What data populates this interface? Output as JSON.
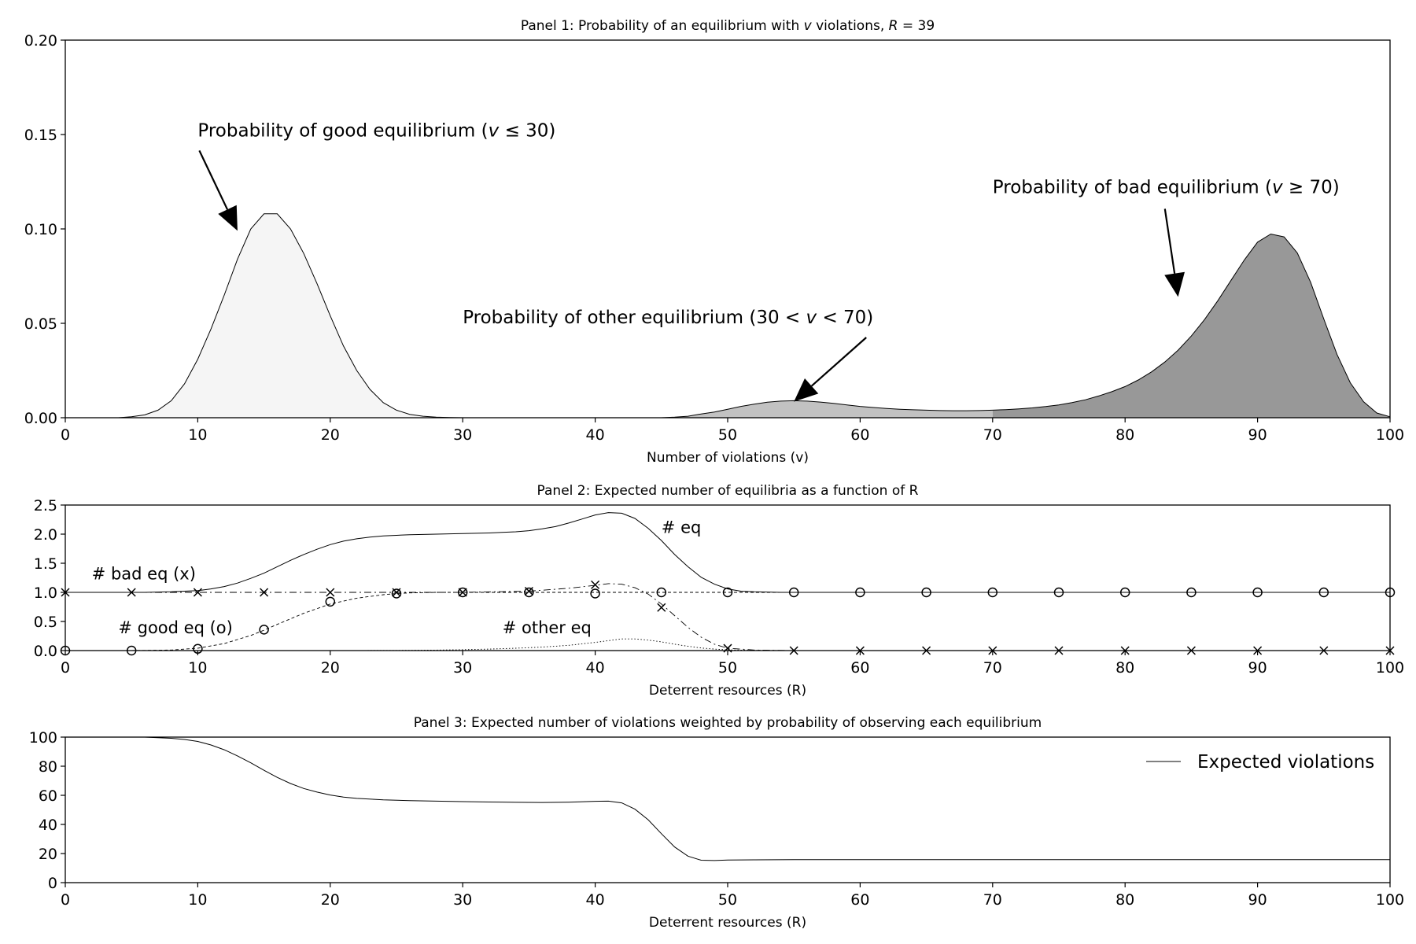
{
  "chart_data": [
    {
      "type": "area",
      "title": "Panel 1: Probability of an equilibrium with v violations, R = 39",
      "title_parts": {
        "prefix": "Panel 1: Probability of an equilibrium with ",
        "var": "v",
        "mid": " violations, ",
        "rvar": "R",
        "suffix": " = 39"
      },
      "xlabel": "Number of violations (v)",
      "ylabel": "",
      "xlim": [
        0,
        100
      ],
      "ylim": [
        0,
        0.2
      ],
      "xticks": [
        "0",
        "10",
        "20",
        "30",
        "40",
        "50",
        "60",
        "70",
        "80",
        "90",
        "100"
      ],
      "yticks": [
        "0.00",
        "0.05",
        "0.10",
        "0.15",
        "0.20"
      ],
      "grid": false,
      "fill_regions": [
        {
          "from": 0,
          "to": 30,
          "color": "#f5f5f5"
        },
        {
          "from": 30,
          "to": 70,
          "color": "#c2c2c2"
        },
        {
          "from": 70,
          "to": 100,
          "color": "#989898"
        }
      ],
      "series": [
        {
          "x": [
            0,
            1,
            2,
            3,
            4,
            5,
            6,
            7,
            8,
            9,
            10,
            11,
            12,
            13,
            14,
            15,
            16,
            17,
            18,
            19,
            20,
            21,
            22,
            23,
            24,
            25,
            26,
            27,
            28,
            29,
            30,
            31,
            32,
            33,
            34,
            35,
            36,
            37,
            38,
            39,
            40,
            41,
            42,
            43,
            44,
            45,
            46,
            47,
            48,
            49,
            50,
            51,
            52,
            53,
            54,
            55,
            56,
            57,
            58,
            59,
            60,
            61,
            62,
            63,
            64,
            65,
            66,
            67,
            68,
            69,
            70,
            71,
            72,
            73,
            74,
            75,
            76,
            77,
            78,
            79,
            80,
            81,
            82,
            83,
            84,
            85,
            86,
            87,
            88,
            89,
            90,
            91,
            92,
            93,
            94,
            95,
            96,
            97,
            98,
            99,
            100
          ],
          "y": [
            0,
            0,
            0,
            0,
            0,
            0.0005,
            0.0015,
            0.004,
            0.009,
            0.018,
            0.031,
            0.047,
            0.065,
            0.084,
            0.1,
            0.108,
            0.108,
            0.1,
            0.087,
            0.071,
            0.054,
            0.038,
            0.025,
            0.015,
            0.008,
            0.004,
            0.0018,
            0.0008,
            0.0003,
            0.0001,
            0,
            0,
            0,
            0,
            0,
            0,
            0,
            0,
            0,
            0,
            0,
            0,
            0,
            0,
            0,
            0,
            0.0003,
            0.0008,
            0.002,
            0.003,
            0.0045,
            0.006,
            0.0072,
            0.0082,
            0.0088,
            0.009,
            0.0088,
            0.0083,
            0.0076,
            0.0068,
            0.006,
            0.0054,
            0.0049,
            0.0045,
            0.0042,
            0.004,
            0.0038,
            0.0037,
            0.0037,
            0.0038,
            0.004,
            0.0043,
            0.0047,
            0.0052,
            0.0059,
            0.0068,
            0.008,
            0.0095,
            0.0115,
            0.0138,
            0.0165,
            0.02,
            0.0243,
            0.0295,
            0.0358,
            0.0433,
            0.052,
            0.062,
            0.0728,
            0.0836,
            0.093,
            0.0973,
            0.0958,
            0.0873,
            0.0718,
            0.0523,
            0.0335,
            0.0185,
            0.0085,
            0.0025,
            0.0005
          ]
        }
      ],
      "annotations": [
        {
          "prefix": "Probability of good equilibrium (",
          "var": "v",
          "suffix": " ≤ 30)",
          "xy": [
            13,
            0.099
          ],
          "xytext": [
            10,
            0.149
          ]
        },
        {
          "prefix": "Probability of other equilibrium (30 < ",
          "var": "v",
          "suffix": " < 70)",
          "xy": [
            55,
            0.0085
          ],
          "xytext": [
            30,
            0.05
          ]
        },
        {
          "prefix": "Probability of bad equilibrium (",
          "var": "v",
          "suffix": " ≥ 70)",
          "xy": [
            84,
            0.064
          ],
          "xytext": [
            70,
            0.119
          ]
        }
      ]
    },
    {
      "type": "line",
      "title": "Panel 2: Expected number of equilibria as a function of R",
      "xlabel": "Deterrent resources (R)",
      "ylabel": "",
      "xlim": [
        0,
        100
      ],
      "ylim": [
        0,
        2.5
      ],
      "xticks": [
        "0",
        "10",
        "20",
        "30",
        "40",
        "50",
        "60",
        "70",
        "80",
        "90",
        "100"
      ],
      "yticks": [
        "0.0",
        "0.5",
        "1.0",
        "1.5",
        "2.0",
        "2.5"
      ],
      "grid": false,
      "series": [
        {
          "name": "# eq",
          "style": "solid",
          "x": [
            0,
            2,
            4,
            6,
            8,
            10,
            11,
            12,
            13,
            14,
            15,
            16,
            17,
            18,
            19,
            20,
            21,
            22,
            23,
            24,
            25,
            26,
            28,
            30,
            32,
            34,
            35,
            36,
            37,
            38,
            39,
            40,
            41,
            42,
            43,
            44,
            45,
            46,
            47,
            48,
            49,
            50,
            51,
            52,
            54,
            56,
            60,
            70,
            80,
            90,
            100
          ],
          "y": [
            1.0,
            1.0,
            1.0,
            1.0,
            1.01,
            1.03,
            1.06,
            1.1,
            1.16,
            1.24,
            1.33,
            1.44,
            1.55,
            1.65,
            1.74,
            1.82,
            1.88,
            1.92,
            1.95,
            1.97,
            1.98,
            1.99,
            2.0,
            2.01,
            2.02,
            2.04,
            2.06,
            2.09,
            2.13,
            2.19,
            2.26,
            2.33,
            2.37,
            2.36,
            2.27,
            2.1,
            1.89,
            1.65,
            1.44,
            1.26,
            1.14,
            1.06,
            1.02,
            1.01,
            1.0,
            1.0,
            1.0,
            1.0,
            1.0,
            1.0,
            1.0
          ]
        },
        {
          "name": "# bad eq (x)",
          "style": "dashdot",
          "x": [
            0,
            5,
            10,
            15,
            20,
            25,
            30,
            35,
            38,
            40,
            41,
            42,
            43,
            44,
            45,
            46,
            47,
            48,
            49,
            50,
            52,
            55,
            60,
            70,
            80,
            90,
            100
          ],
          "y": [
            1.0,
            1.0,
            1.0,
            1.0,
            1.0,
            1.0,
            1.0,
            1.02,
            1.07,
            1.12,
            1.15,
            1.14,
            1.08,
            0.97,
            0.8,
            0.6,
            0.4,
            0.23,
            0.11,
            0.04,
            0.01,
            0,
            0,
            0,
            0,
            0,
            0
          ],
          "markers": "x",
          "marker_x": [
            0,
            5,
            10,
            15,
            20,
            25,
            30,
            35,
            40,
            45,
            50,
            55,
            60,
            65,
            70,
            75,
            80,
            85,
            90,
            95,
            100
          ],
          "marker_y": [
            1.0,
            1.0,
            1.0,
            1.0,
            1.0,
            1.0,
            1.0,
            1.02,
            1.13,
            0.74,
            0.04,
            0,
            0,
            0,
            0,
            0,
            0,
            0,
            0,
            0,
            0
          ]
        },
        {
          "name": "# good eq (o)",
          "style": "dashed",
          "x": [
            0,
            4,
            6,
            8,
            10,
            12,
            14,
            15,
            16,
            18,
            20,
            22,
            24,
            25,
            26,
            28,
            30,
            35,
            40,
            45,
            50,
            60,
            70,
            80,
            90,
            100
          ],
          "y": [
            0,
            0,
            0.003,
            0.01,
            0.04,
            0.12,
            0.26,
            0.35,
            0.45,
            0.64,
            0.8,
            0.9,
            0.96,
            0.98,
            0.99,
            1.0,
            1.0,
            1.0,
            1.0,
            1.0,
            1.0,
            1.0,
            1.0,
            1.0,
            1.0,
            1.0
          ],
          "markers": "o",
          "marker_x": [
            0,
            5,
            10,
            15,
            20,
            25,
            30,
            35,
            40,
            45,
            50,
            55,
            60,
            65,
            70,
            75,
            80,
            85,
            90,
            95,
            100
          ],
          "marker_y": [
            0,
            0,
            0.03,
            0.36,
            0.84,
            0.98,
            1.0,
            1.0,
            0.98,
            1.0,
            1.0,
            1.0,
            1.0,
            1.0,
            1.0,
            1.0,
            1.0,
            1.0,
            1.0,
            1.0,
            1.0
          ]
        },
        {
          "name": "# other eq",
          "style": "dotted",
          "x": [
            0,
            10,
            20,
            25,
            28,
            30,
            32,
            34,
            36,
            38,
            40,
            41,
            42,
            43,
            44,
            45,
            46,
            47,
            48,
            49,
            50,
            52,
            55,
            60,
            100
          ],
          "y": [
            0,
            0,
            0,
            0.003,
            0.008,
            0.015,
            0.025,
            0.04,
            0.06,
            0.09,
            0.14,
            0.17,
            0.2,
            0.2,
            0.18,
            0.15,
            0.11,
            0.075,
            0.045,
            0.025,
            0.012,
            0.004,
            0,
            0,
            0
          ]
        }
      ],
      "labels": [
        {
          "text": "# eq",
          "x": 45,
          "y": 2.02
        },
        {
          "text": "# bad eq (x)",
          "x": 2,
          "y": 1.22
        },
        {
          "text": "# good eq (o)",
          "x": 4,
          "y": 0.3
        },
        {
          "text": "# other eq",
          "x": 33,
          "y": 0.3
        }
      ]
    },
    {
      "type": "line",
      "title": "Panel 3: Expected number of violations weighted by probability of observing each equilibrium",
      "xlabel": "Deterrent resources (R)",
      "ylabel": "",
      "xlim": [
        0,
        100
      ],
      "ylim": [
        0,
        100
      ],
      "xticks": [
        "0",
        "10",
        "20",
        "30",
        "40",
        "50",
        "60",
        "70",
        "80",
        "90",
        "100"
      ],
      "yticks": [
        "0",
        "20",
        "40",
        "60",
        "80",
        "100"
      ],
      "grid": false,
      "legend": {
        "position": "top-right",
        "entries": [
          "Expected violations"
        ]
      },
      "series": [
        {
          "name": "Expected violations",
          "x": [
            0,
            4,
            6,
            8,
            9,
            10,
            11,
            12,
            13,
            14,
            15,
            16,
            17,
            18,
            19,
            20,
            21,
            22,
            24,
            26,
            28,
            30,
            32,
            34,
            36,
            38,
            40,
            41,
            42,
            43,
            44,
            45,
            46,
            47,
            48,
            49,
            50,
            52,
            55,
            60,
            70,
            80,
            90,
            100
          ],
          "y": [
            100,
            100,
            100,
            99.2,
            98.4,
            97,
            94.6,
            91.3,
            87.1,
            82.3,
            77.2,
            72.3,
            68.1,
            64.7,
            62.2,
            60.2,
            58.8,
            57.9,
            56.9,
            56.4,
            56,
            55.7,
            55.4,
            55.2,
            55.1,
            55.3,
            55.9,
            56,
            54.8,
            50.5,
            43.2,
            33.6,
            24.5,
            18.2,
            15.4,
            15.2,
            15.5,
            15.7,
            15.8,
            15.8,
            15.8,
            15.8,
            15.8,
            15.8
          ]
        }
      ]
    }
  ]
}
